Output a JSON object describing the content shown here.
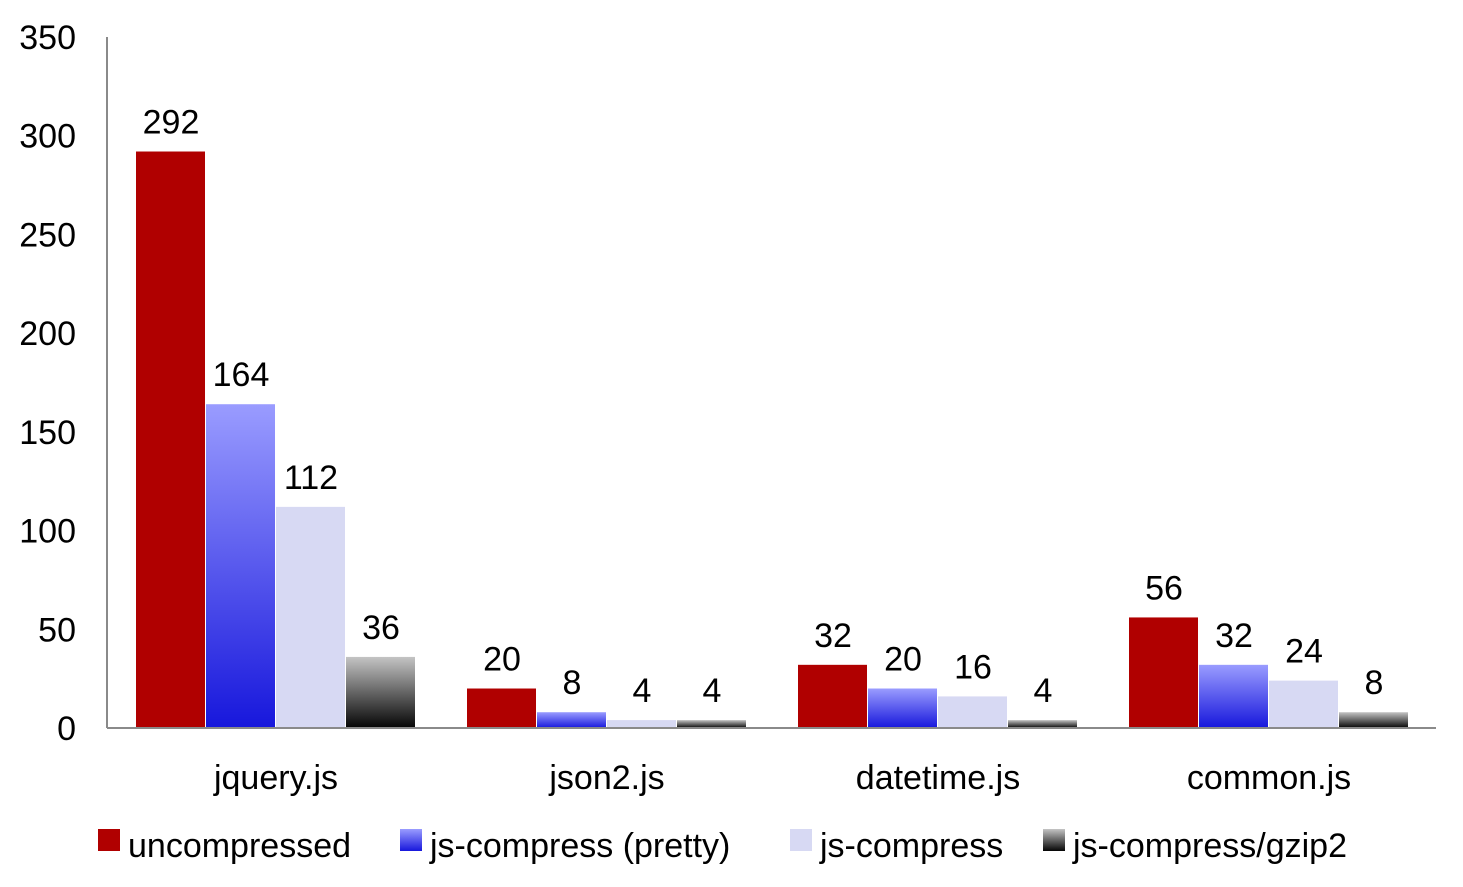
{
  "chart_data": {
    "type": "bar",
    "title": "",
    "xlabel": "",
    "ylabel": "",
    "ylim": [
      0,
      350
    ],
    "yticks": [
      "0",
      "50",
      "100",
      "150",
      "200",
      "250",
      "300",
      "350"
    ],
    "grid": false,
    "legend_position": "bottom",
    "categories": [
      "jquery.js",
      "json2.js",
      "datetime.js",
      "common.js"
    ],
    "series": [
      {
        "name": "uncompressed",
        "color": "#b00000",
        "style": "solid",
        "values": [
          292,
          20,
          32,
          56
        ],
        "labels": [
          "292",
          "20",
          "32",
          "56"
        ]
      },
      {
        "name": "js-compress (pretty)",
        "color": "#3a3af0",
        "style": "gradient-blue",
        "values": [
          164,
          8,
          20,
          32
        ],
        "labels": [
          "164",
          "8",
          "20",
          "32"
        ]
      },
      {
        "name": "js-compress",
        "color": "#d7d9f3",
        "style": "solid",
        "values": [
          112,
          4,
          16,
          24
        ],
        "labels": [
          "112",
          "4",
          "16",
          "24"
        ]
      },
      {
        "name": "js-compress/gzip2",
        "color": "#6a6a6a",
        "style": "gradient-gray",
        "values": [
          36,
          4,
          4,
          8
        ],
        "labels": [
          "36",
          "4",
          "4",
          "8"
        ]
      }
    ]
  }
}
